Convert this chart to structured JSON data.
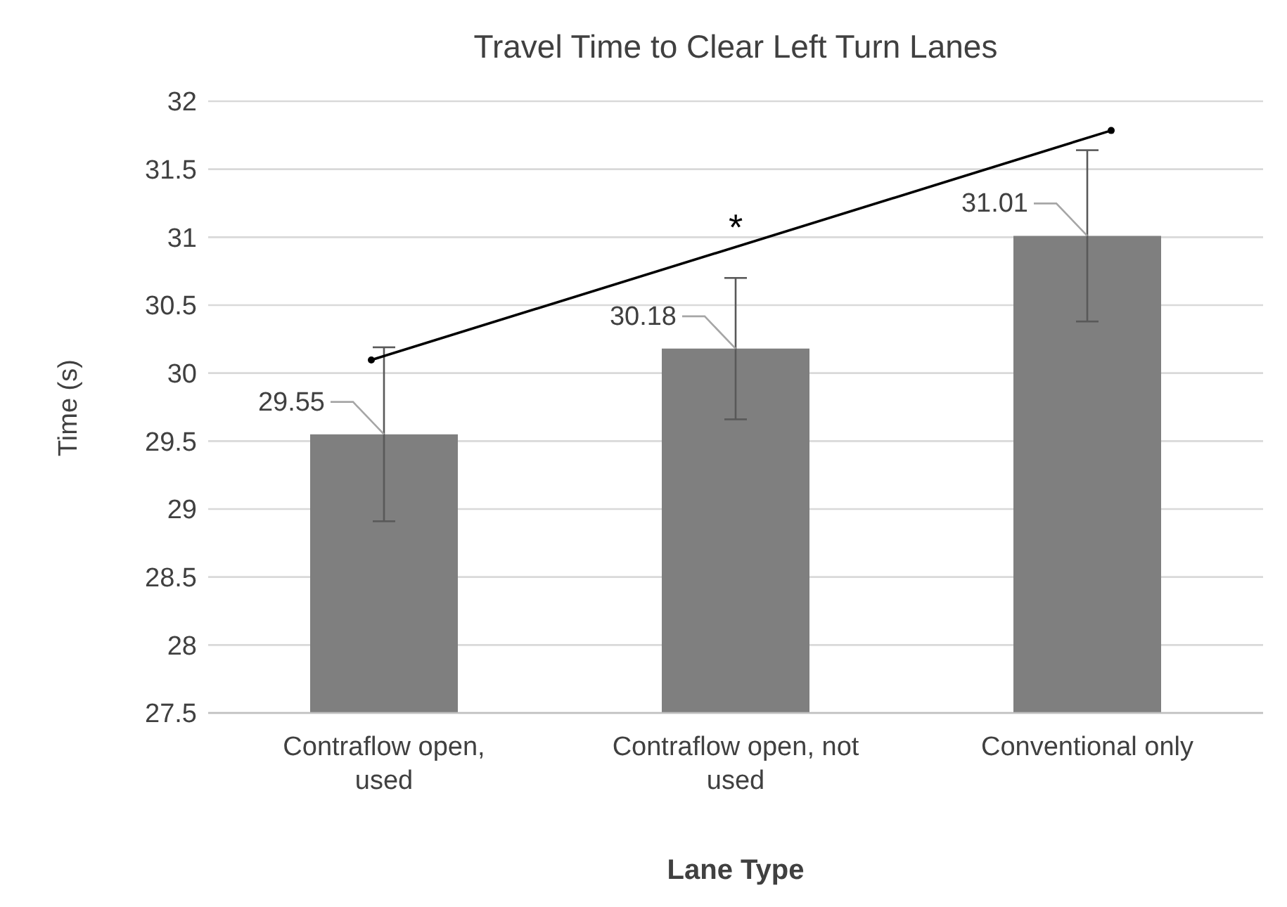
{
  "chart_data": {
    "type": "bar",
    "title": "Travel Time to Clear Left Turn Lanes",
    "xlabel": "Lane Type",
    "ylabel": "Time (s)",
    "categories": [
      "Contraflow open, used",
      "Contraflow open, not used",
      "Conventional only"
    ],
    "values": [
      29.55,
      30.18,
      31.01
    ],
    "errors": [
      0.64,
      0.52,
      0.63
    ],
    "color": "#7f7f7f",
    "ylim": [
      27.5,
      32
    ],
    "yticks": [
      27.5,
      28,
      28.5,
      29,
      29.5,
      30,
      30.5,
      31,
      31.5,
      32
    ],
    "grid": "y",
    "data_labels": true,
    "annotations": [
      "*"
    ]
  }
}
